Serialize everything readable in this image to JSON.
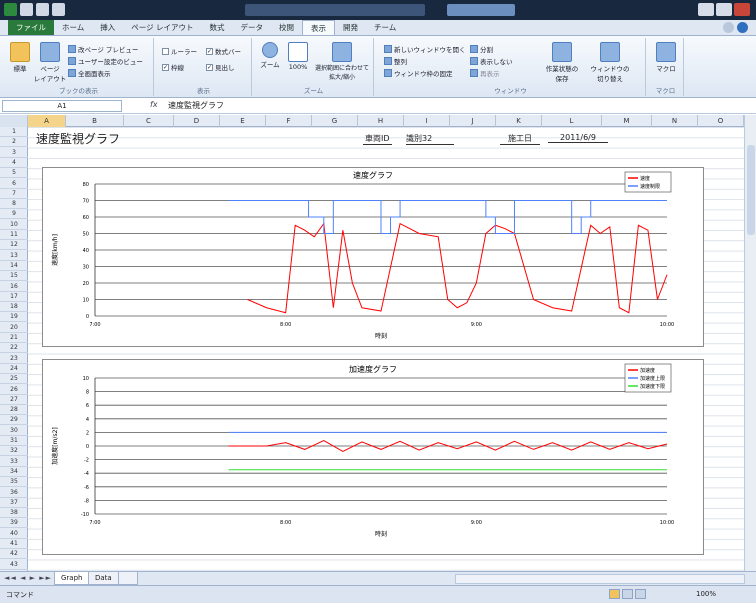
{
  "ribbon": {
    "tabs": [
      "ファイル",
      "ホーム",
      "挿入",
      "ページ レイアウト",
      "数式",
      "データ",
      "校閲",
      "表示",
      "開発",
      "チーム"
    ],
    "active_tab": "表示",
    "groups": {
      "views": {
        "label": "ブックの表示",
        "normal": "標準",
        "page_layout": "ページ\nレイアウト",
        "page_break": "改ページ プレビュー",
        "custom": "ユーザー設定のビュー",
        "full": "全画面表示"
      },
      "show": {
        "label": "表示",
        "ruler": "ルーラー",
        "formula_bar": "数式バー",
        "gridlines": "枠線",
        "headings": "見出し"
      },
      "zoom": {
        "label": "ズーム",
        "zoom": "ズーム",
        "zoom100": "100%",
        "zoom_sel": "選択範囲に合わせて\n拡大/縮小"
      },
      "window": {
        "label": "ウィンドウ",
        "new": "新しいウィンドウを開く",
        "arrange": "整列",
        "freeze": "ウィンドウ枠の固定",
        "split": "分割",
        "hide": "表示しない",
        "unhide": "再表示",
        "save_ws": "作業状態の\n保存",
        "switch": "ウィンドウの\n切り替え"
      },
      "macro": {
        "label": "マクロ",
        "macro": "マクロ"
      }
    }
  },
  "formula_bar": {
    "name_box": "A1",
    "fx": "fx",
    "value": "速度監視グラフ"
  },
  "columns": [
    "A",
    "B",
    "C",
    "D",
    "E",
    "F",
    "G",
    "H",
    "I",
    "J",
    "K",
    "L",
    "M",
    "N",
    "O"
  ],
  "rows": [
    "1",
    "2",
    "3",
    "4",
    "5",
    "6",
    "7",
    "8",
    "9",
    "10",
    "11",
    "12",
    "13",
    "14",
    "15",
    "16",
    "17",
    "18",
    "19",
    "20",
    "21",
    "22",
    "23",
    "24",
    "25",
    "26",
    "27",
    "28",
    "29",
    "30",
    "31",
    "32",
    "33",
    "34",
    "35",
    "36",
    "37",
    "38",
    "39",
    "40",
    "41",
    "42",
    "43"
  ],
  "cells": {
    "title": "速度監視グラフ",
    "vehicle_label": "車両ID",
    "vehicle_value": "識別32",
    "date_label": "施工日",
    "date_value": "2011/6/9"
  },
  "charts": {
    "speed": {
      "title": "速度グラフ",
      "ylabel": "速度[km/h]",
      "xlabel": "時刻",
      "legend": [
        "速度",
        "速度制限"
      ]
    },
    "accel": {
      "title": "加速度グラフ",
      "ylabel": "加速度[m/s2]",
      "xlabel": "時刻",
      "legend": [
        "加速度",
        "加速度上限",
        "加速度下限"
      ]
    }
  },
  "chart_data": [
    {
      "type": "line",
      "title": "速度グラフ",
      "xlabel": "時刻",
      "ylabel": "速度[km/h]",
      "x_ticks": [
        "7:00",
        "8:00",
        "9:00",
        "10:00"
      ],
      "ylim": [
        0,
        80
      ],
      "y_ticks": [
        0,
        10,
        20,
        30,
        40,
        50,
        60,
        70,
        80
      ],
      "legend_position": "top-right",
      "series": [
        {
          "name": "速度",
          "color": "#ff0000",
          "x": [
            7.8,
            7.9,
            8.0,
            8.05,
            8.1,
            8.15,
            8.2,
            8.25,
            8.3,
            8.35,
            8.4,
            8.5,
            8.6,
            8.7,
            8.8,
            8.85,
            8.9,
            8.95,
            9.0,
            9.05,
            9.1,
            9.15,
            9.2,
            9.3,
            9.4,
            9.5,
            9.6,
            9.65,
            9.7,
            9.75,
            9.8,
            9.85,
            9.9,
            9.95,
            10.0
          ],
          "values": [
            10,
            5,
            2,
            55,
            52,
            48,
            56,
            5,
            52,
            20,
            5,
            3,
            56,
            50,
            48,
            10,
            5,
            8,
            20,
            50,
            55,
            53,
            50,
            10,
            5,
            3,
            55,
            50,
            54,
            5,
            2,
            55,
            52,
            10,
            25
          ]
        },
        {
          "name": "速度制限",
          "color": "#4f81ff",
          "x": [
            7.7,
            8.12,
            8.12,
            8.2,
            8.2,
            8.25,
            8.25,
            8.5,
            8.5,
            8.55,
            8.55,
            8.6,
            8.6,
            9.05,
            9.05,
            9.1,
            9.1,
            9.2,
            9.2,
            9.5,
            9.5,
            9.55,
            9.55,
            9.6,
            9.6,
            10.0
          ],
          "values": [
            70,
            70,
            60,
            60,
            50,
            50,
            70,
            70,
            50,
            50,
            60,
            60,
            70,
            70,
            60,
            60,
            50,
            50,
            70,
            70,
            50,
            50,
            60,
            60,
            70,
            70
          ]
        }
      ]
    },
    {
      "type": "line",
      "title": "加速度グラフ",
      "xlabel": "時刻",
      "ylabel": "加速度[m/s2]",
      "x_ticks": [
        "7:00",
        "8:00",
        "9:00",
        "10:00"
      ],
      "ylim": [
        -10,
        10
      ],
      "y_ticks": [
        -10,
        -8,
        -6,
        -4,
        -2,
        0,
        2,
        4,
        6,
        8,
        10
      ],
      "legend_position": "top-right",
      "series": [
        {
          "name": "加速度",
          "color": "#ff0000",
          "x": [
            7.7,
            7.8,
            7.9,
            8.0,
            8.1,
            8.2,
            8.3,
            8.4,
            8.5,
            8.6,
            8.7,
            8.8,
            8.9,
            9.0,
            9.1,
            9.2,
            9.3,
            9.4,
            9.5,
            9.6,
            9.7,
            9.8,
            9.9,
            10.0
          ],
          "values": [
            0,
            0,
            0,
            0.5,
            -0.5,
            0.8,
            -0.8,
            0.6,
            -0.5,
            0.7,
            -0.6,
            0.5,
            -0.4,
            0.6,
            -0.6,
            0.7,
            -0.5,
            0.5,
            -0.6,
            0.6,
            -0.5,
            0.5,
            -0.4,
            0.3
          ]
        },
        {
          "name": "加速度上限",
          "color": "#4f81ff",
          "x": [
            7.7,
            10.0
          ],
          "values": [
            2,
            2
          ]
        },
        {
          "name": "加速度下限",
          "color": "#33dd33",
          "x": [
            7.7,
            10.0
          ],
          "values": [
            -3.5,
            -3.5
          ]
        }
      ]
    }
  ],
  "sheets": [
    "Graph",
    "Data"
  ],
  "active_sheet": "Graph",
  "status": {
    "ready": "コマンド",
    "zoom": "100%"
  }
}
